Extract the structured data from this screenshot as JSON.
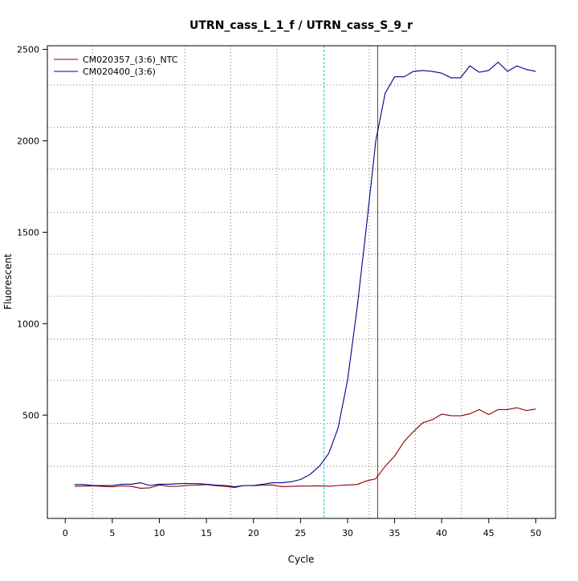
{
  "chart_data": {
    "type": "line",
    "title": "UTRN_cass_L_1_f / UTRN_cass_S_9_r",
    "xlabel": "Cycle",
    "ylabel": "Fluorescent",
    "xlim": [
      -1.9,
      52.1
    ],
    "ylim": [
      -65,
      2520
    ],
    "xticks": [
      0,
      5,
      10,
      15,
      20,
      25,
      30,
      35,
      40,
      45,
      50
    ],
    "yticks": [
      500,
      1000,
      1500,
      2000,
      2500
    ],
    "legend_position": "top-left",
    "grid": {
      "style": "dotted",
      "vertical": [
        2.9,
        12.7,
        17.6,
        22.5,
        32.3,
        37.2,
        42.1,
        47.0
      ],
      "horizontal": [
        220,
        455,
        690,
        915,
        1150,
        1380,
        1610,
        1845,
        2075,
        2305
      ]
    },
    "reference_lines": [
      {
        "axis": "x",
        "value": 27.5,
        "color": "#00CCCC",
        "style": "dashed"
      },
      {
        "axis": "x",
        "value": 33.2,
        "color": "#B22222",
        "style": "solid"
      }
    ],
    "series": [
      {
        "name": "CM020357_(3:6)_NTC",
        "color": "#8B0000",
        "x": [
          1,
          2,
          3,
          4,
          5,
          6,
          7,
          8,
          9,
          10,
          11,
          12,
          13,
          14,
          15,
          16,
          17,
          18,
          19,
          20,
          21,
          22,
          23,
          24,
          25,
          26,
          27,
          28,
          29,
          30,
          31,
          32,
          33,
          34,
          35,
          36,
          37,
          38,
          39,
          40,
          41,
          42,
          43,
          44,
          45,
          46,
          47,
          48,
          49,
          50
        ],
        "values": [
          110,
          112,
          113,
          110,
          108,
          113,
          110,
          100,
          102,
          118,
          110,
          111,
          115,
          117,
          120,
          114,
          110,
          104,
          115,
          114,
          117,
          118,
          109,
          110,
          112,
          112,
          113,
          111,
          115,
          118,
          120,
          140,
          152,
          220,
          276,
          355,
          410,
          458,
          475,
          505,
          497,
          496,
          507,
          530,
          503,
          530,
          530,
          540,
          525,
          533
        ]
      },
      {
        "name": "CM020400_(3:6)",
        "color": "#00008B",
        "x": [
          1,
          2,
          3,
          4,
          5,
          6,
          7,
          8,
          9,
          10,
          11,
          12,
          13,
          14,
          15,
          16,
          17,
          18,
          19,
          20,
          21,
          22,
          23,
          24,
          25,
          26,
          27,
          28,
          29,
          30,
          31,
          32,
          33,
          34,
          35,
          36,
          37,
          38,
          39,
          40,
          41,
          42,
          43,
          44,
          45,
          46,
          47,
          48,
          49,
          50
        ],
        "values": [
          120,
          120,
          115,
          115,
          115,
          122,
          122,
          130,
          115,
          122,
          122,
          125,
          125,
          125,
          122,
          117,
          115,
          108,
          115,
          115,
          122,
          130,
          130,
          135,
          148,
          175,
          220,
          290,
          430,
          690,
          1080,
          1530,
          2000,
          2260,
          2350,
          2350,
          2380,
          2385,
          2380,
          2370,
          2345,
          2345,
          2410,
          2375,
          2385,
          2430,
          2380,
          2410,
          2390,
          2380
        ]
      }
    ]
  }
}
